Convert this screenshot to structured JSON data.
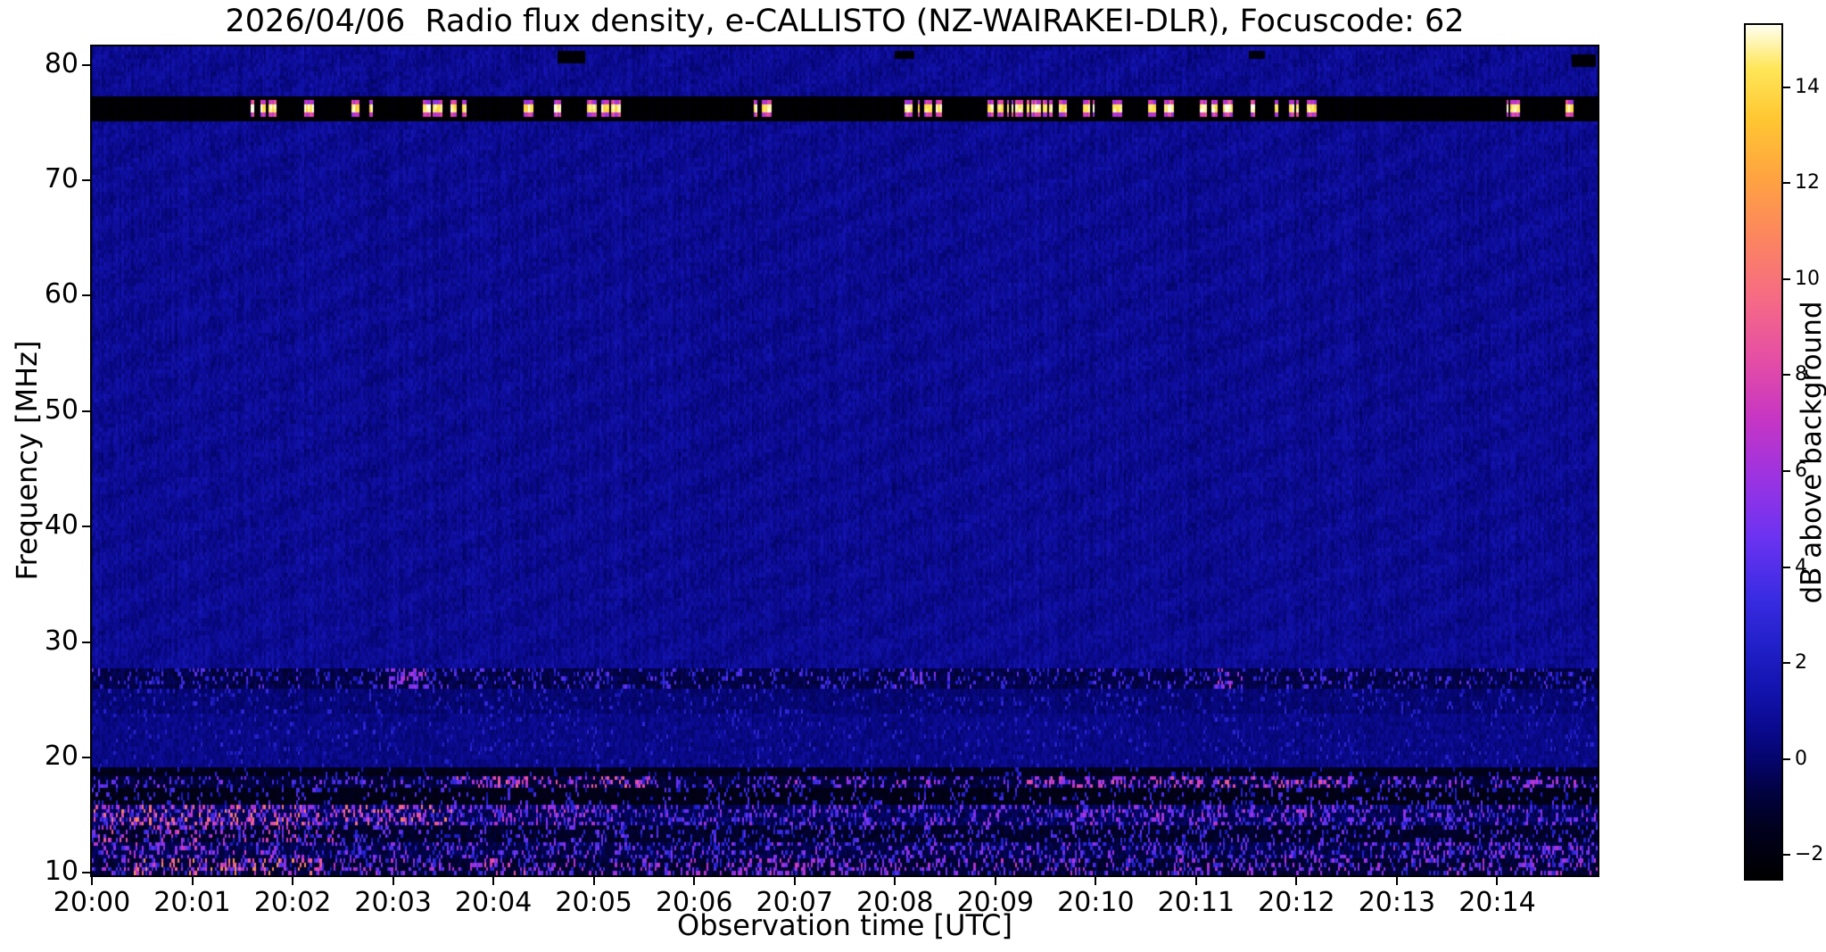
{
  "chart_data": {
    "type": "heatmap",
    "title": "2026/04/06  Radio flux density, e-CALLISTO (NZ-WAIRAKEI-DLR), Focuscode: 62",
    "xlabel": "Observation time [UTC]",
    "ylabel": "Frequency [MHz]",
    "time_range_min": [
      0,
      15
    ],
    "freq_range_mhz": [
      9.8,
      81.6
    ],
    "x_ticks": [
      {
        "minute": 0,
        "label": "20:00"
      },
      {
        "minute": 1,
        "label": "20:01"
      },
      {
        "minute": 2,
        "label": "20:02"
      },
      {
        "minute": 3,
        "label": "20:03"
      },
      {
        "minute": 4,
        "label": "20:04"
      },
      {
        "minute": 5,
        "label": "20:05"
      },
      {
        "minute": 6,
        "label": "20:06"
      },
      {
        "minute": 7,
        "label": "20:07"
      },
      {
        "minute": 8,
        "label": "20:08"
      },
      {
        "minute": 9,
        "label": "20:09"
      },
      {
        "minute": 10,
        "label": "20:10"
      },
      {
        "minute": 11,
        "label": "20:11"
      },
      {
        "minute": 12,
        "label": "20:12"
      },
      {
        "minute": 13,
        "label": "20:13"
      },
      {
        "minute": 14,
        "label": "20:14"
      }
    ],
    "y_ticks": [
      {
        "value": 10,
        "label": "10"
      },
      {
        "value": 20,
        "label": "20"
      },
      {
        "value": 30,
        "label": "30"
      },
      {
        "value": 40,
        "label": "40"
      },
      {
        "value": 50,
        "label": "50"
      },
      {
        "value": 60,
        "label": "60"
      },
      {
        "value": 70,
        "label": "70"
      },
      {
        "value": 80,
        "label": "80"
      }
    ],
    "colorbar": {
      "label": "dB above background",
      "range": [
        -2.5,
        15.3
      ],
      "ticks": [
        {
          "value": -2,
          "label": "−2"
        },
        {
          "value": 0,
          "label": "0"
        },
        {
          "value": 2,
          "label": "2"
        },
        {
          "value": 4,
          "label": "4"
        },
        {
          "value": 6,
          "label": "6"
        },
        {
          "value": 8,
          "label": "8"
        },
        {
          "value": 10,
          "label": "10"
        },
        {
          "value": 12,
          "label": "12"
        },
        {
          "value": 14,
          "label": "14"
        }
      ],
      "stops": [
        [
          0.0,
          "#000000"
        ],
        [
          0.06,
          "#01011f"
        ],
        [
          0.1,
          "#020240"
        ],
        [
          0.14,
          "#05056e"
        ],
        [
          0.18,
          "#0b0b92"
        ],
        [
          0.22,
          "#1313ae"
        ],
        [
          0.27,
          "#2020c8"
        ],
        [
          0.33,
          "#3a2ce2"
        ],
        [
          0.4,
          "#6c33f2"
        ],
        [
          0.47,
          "#9c33e2"
        ],
        [
          0.54,
          "#c736c4"
        ],
        [
          0.61,
          "#e64fa4"
        ],
        [
          0.68,
          "#f66b85"
        ],
        [
          0.75,
          "#fc8560"
        ],
        [
          0.82,
          "#ffa342"
        ],
        [
          0.89,
          "#ffc732"
        ],
        [
          0.95,
          "#ffe75a"
        ],
        [
          1.0,
          "#fffff0"
        ]
      ]
    },
    "grid": {
      "cols": 760,
      "rows": 200
    },
    "seed": 20260406,
    "background": {
      "base": 0.7,
      "noise": 1.0,
      "col_streak": 0.5,
      "ripple": 0.16
    },
    "features": [
      {
        "name": "quiet-mid-band",
        "fmin": 19.0,
        "fmax": 23.8,
        "base": 0.45,
        "noise": 0.95,
        "speckle": 0.05,
        "speckle_v": [
          1.5,
          3.0
        ]
      },
      {
        "name": "band-25",
        "fmin": 23.8,
        "fmax": 26.1,
        "base": 0.1,
        "noise": 0.8,
        "speckle": 0.09,
        "speckle_v": [
          1.2,
          3.2
        ]
      },
      {
        "name": "band-27",
        "fmin": 26.1,
        "fmax": 27.7,
        "base": -0.6,
        "noise": 0.9,
        "speckle": 0.17,
        "speckle_v": [
          1.5,
          4.5
        ],
        "hot_windows": [
          [
            2.9,
            3.35,
            0.3,
            4,
            7
          ],
          [
            11.2,
            11.5,
            0.3,
            5,
            7.5
          ],
          [
            7.9,
            8.4,
            0.15,
            3,
            5.5
          ]
        ]
      },
      {
        "name": "band-18-19",
        "fmin": 18.4,
        "fmax": 19.0,
        "base": -1.6,
        "noise": 0.5,
        "speckle": 0.06,
        "speckle_v": [
          1,
          3
        ]
      },
      {
        "name": "band-18",
        "fmin": 17.4,
        "fmax": 18.4,
        "base": -0.9,
        "noise": 0.9,
        "speckle": 0.2,
        "speckle_v": [
          2,
          5.5
        ],
        "hot_windows": [
          [
            3.6,
            5.6,
            0.25,
            5.5,
            9.5
          ],
          [
            6.9,
            8.7,
            0.12,
            4,
            7
          ],
          [
            9.3,
            12.6,
            0.3,
            5,
            9
          ],
          [
            12.9,
            14.9,
            0.12,
            4,
            7
          ]
        ]
      },
      {
        "name": "band-16",
        "fmin": 15.8,
        "fmax": 17.4,
        "base": -1.7,
        "noise": 0.5,
        "speckle": 0.13,
        "speckle_v": [
          1.5,
          4.5
        ]
      },
      {
        "name": "band-15",
        "fmin": 14.2,
        "fmax": 15.8,
        "base": -0.4,
        "noise": 1.0,
        "speckle": 0.3,
        "speckle_v": [
          2,
          6
        ],
        "hot_windows": [
          [
            0,
            3.6,
            0.22,
            6,
            11
          ],
          [
            4.0,
            5.3,
            0.12,
            5,
            8
          ],
          [
            9.8,
            12.3,
            0.1,
            4,
            7.5
          ]
        ]
      },
      {
        "name": "band-13",
        "fmin": 12.6,
        "fmax": 14.2,
        "base": -1.2,
        "noise": 0.7,
        "speckle": 0.18,
        "speckle_v": [
          1.5,
          5
        ],
        "hot_windows": [
          [
            0,
            2.4,
            0.12,
            5,
            9
          ]
        ]
      },
      {
        "name": "band-12",
        "fmin": 11.2,
        "fmax": 12.6,
        "base": -0.6,
        "noise": 1.0,
        "speckle": 0.26,
        "speckle_v": [
          2,
          6
        ],
        "hot_windows": [
          [
            0,
            2.2,
            0.1,
            5,
            8
          ],
          [
            13.2,
            15,
            0.12,
            4,
            7
          ]
        ]
      },
      {
        "name": "band-10",
        "fmin": 9.8,
        "fmax": 11.2,
        "base": -1.0,
        "noise": 0.9,
        "speckle": 0.3,
        "speckle_v": [
          2,
          7
        ],
        "hot_windows": [
          [
            0.3,
            2.3,
            0.18,
            7,
            12
          ],
          [
            3.9,
            4.35,
            0.15,
            6,
            9
          ],
          [
            6.5,
            7.3,
            0.1,
            5,
            8
          ],
          [
            9.0,
            9.4,
            0.1,
            5,
            8
          ]
        ]
      },
      {
        "name": "rfi-band-76",
        "fmin": 75.1,
        "fmax": 77.3,
        "base": -2.4,
        "noise": 0.15
      },
      {
        "name": "rfi-bursts-76",
        "type": "burst",
        "fmin": 75.3,
        "fmax": 77.1,
        "center": 76.2,
        "core": 0.3,
        "halo": 0.6,
        "core_v": [
          11.5,
          15.4
        ],
        "halo_v": [
          5.5,
          9.5
        ],
        "windows": [
          [
            1.55,
            2.35,
            0.6
          ],
          [
            2.55,
            2.95,
            0.5
          ],
          [
            3.3,
            3.75,
            0.5
          ],
          [
            4.3,
            4.75,
            0.5
          ],
          [
            4.8,
            5.35,
            0.65
          ],
          [
            5.7,
            5.9,
            0.35
          ],
          [
            6.55,
            6.8,
            0.45
          ],
          [
            7.6,
            8.05,
            0.45
          ],
          [
            8.1,
            8.65,
            0.5
          ],
          [
            8.9,
            9.65,
            0.6
          ],
          [
            9.7,
            10.2,
            0.55
          ],
          [
            10.3,
            10.8,
            0.5
          ],
          [
            10.85,
            11.35,
            0.45
          ],
          [
            11.5,
            12.3,
            0.55
          ],
          [
            14.0,
            14.18,
            0.4
          ],
          [
            14.55,
            14.78,
            0.4
          ]
        ]
      },
      {
        "name": "top-dark-specks",
        "type": "patch",
        "patches": [
          [
            4.78,
            80.6,
            0.14,
            0.5,
            -2.3
          ],
          [
            8.1,
            80.9,
            0.1,
            0.3,
            -2.2
          ],
          [
            14.87,
            80.4,
            0.12,
            0.5,
            -2.3
          ],
          [
            11.6,
            80.9,
            0.08,
            0.3,
            -2.0
          ]
        ]
      }
    ]
  }
}
